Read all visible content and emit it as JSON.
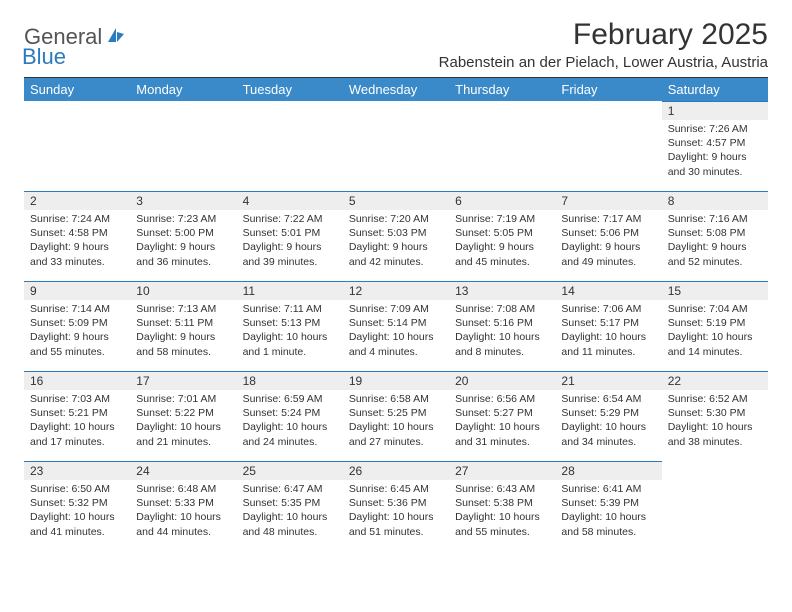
{
  "logo": {
    "part1": "General",
    "part2": "Blue"
  },
  "title": "February 2025",
  "location": "Rabenstein an der Pielach, Lower Austria, Austria",
  "colors": {
    "header_bar": "#3a89c9",
    "daynum_bg": "#eeeeee",
    "daynum_border": "#2b7bbf",
    "text": "#333333",
    "logo_gray": "#555555",
    "logo_blue": "#2b7bbf"
  },
  "weekdays": [
    "Sunday",
    "Monday",
    "Tuesday",
    "Wednesday",
    "Thursday",
    "Friday",
    "Saturday"
  ],
  "weeks": [
    [
      null,
      null,
      null,
      null,
      null,
      null,
      {
        "d": "1",
        "sunrise": "7:26 AM",
        "sunset": "4:57 PM",
        "daylight": "9 hours and 30 minutes."
      }
    ],
    [
      {
        "d": "2",
        "sunrise": "7:24 AM",
        "sunset": "4:58 PM",
        "daylight": "9 hours and 33 minutes."
      },
      {
        "d": "3",
        "sunrise": "7:23 AM",
        "sunset": "5:00 PM",
        "daylight": "9 hours and 36 minutes."
      },
      {
        "d": "4",
        "sunrise": "7:22 AM",
        "sunset": "5:01 PM",
        "daylight": "9 hours and 39 minutes."
      },
      {
        "d": "5",
        "sunrise": "7:20 AM",
        "sunset": "5:03 PM",
        "daylight": "9 hours and 42 minutes."
      },
      {
        "d": "6",
        "sunrise": "7:19 AM",
        "sunset": "5:05 PM",
        "daylight": "9 hours and 45 minutes."
      },
      {
        "d": "7",
        "sunrise": "7:17 AM",
        "sunset": "5:06 PM",
        "daylight": "9 hours and 49 minutes."
      },
      {
        "d": "8",
        "sunrise": "7:16 AM",
        "sunset": "5:08 PM",
        "daylight": "9 hours and 52 minutes."
      }
    ],
    [
      {
        "d": "9",
        "sunrise": "7:14 AM",
        "sunset": "5:09 PM",
        "daylight": "9 hours and 55 minutes."
      },
      {
        "d": "10",
        "sunrise": "7:13 AM",
        "sunset": "5:11 PM",
        "daylight": "9 hours and 58 minutes."
      },
      {
        "d": "11",
        "sunrise": "7:11 AM",
        "sunset": "5:13 PM",
        "daylight": "10 hours and 1 minute."
      },
      {
        "d": "12",
        "sunrise": "7:09 AM",
        "sunset": "5:14 PM",
        "daylight": "10 hours and 4 minutes."
      },
      {
        "d": "13",
        "sunrise": "7:08 AM",
        "sunset": "5:16 PM",
        "daylight": "10 hours and 8 minutes."
      },
      {
        "d": "14",
        "sunrise": "7:06 AM",
        "sunset": "5:17 PM",
        "daylight": "10 hours and 11 minutes."
      },
      {
        "d": "15",
        "sunrise": "7:04 AM",
        "sunset": "5:19 PM",
        "daylight": "10 hours and 14 minutes."
      }
    ],
    [
      {
        "d": "16",
        "sunrise": "7:03 AM",
        "sunset": "5:21 PM",
        "daylight": "10 hours and 17 minutes."
      },
      {
        "d": "17",
        "sunrise": "7:01 AM",
        "sunset": "5:22 PM",
        "daylight": "10 hours and 21 minutes."
      },
      {
        "d": "18",
        "sunrise": "6:59 AM",
        "sunset": "5:24 PM",
        "daylight": "10 hours and 24 minutes."
      },
      {
        "d": "19",
        "sunrise": "6:58 AM",
        "sunset": "5:25 PM",
        "daylight": "10 hours and 27 minutes."
      },
      {
        "d": "20",
        "sunrise": "6:56 AM",
        "sunset": "5:27 PM",
        "daylight": "10 hours and 31 minutes."
      },
      {
        "d": "21",
        "sunrise": "6:54 AM",
        "sunset": "5:29 PM",
        "daylight": "10 hours and 34 minutes."
      },
      {
        "d": "22",
        "sunrise": "6:52 AM",
        "sunset": "5:30 PM",
        "daylight": "10 hours and 38 minutes."
      }
    ],
    [
      {
        "d": "23",
        "sunrise": "6:50 AM",
        "sunset": "5:32 PM",
        "daylight": "10 hours and 41 minutes."
      },
      {
        "d": "24",
        "sunrise": "6:48 AM",
        "sunset": "5:33 PM",
        "daylight": "10 hours and 44 minutes."
      },
      {
        "d": "25",
        "sunrise": "6:47 AM",
        "sunset": "5:35 PM",
        "daylight": "10 hours and 48 minutes."
      },
      {
        "d": "26",
        "sunrise": "6:45 AM",
        "sunset": "5:36 PM",
        "daylight": "10 hours and 51 minutes."
      },
      {
        "d": "27",
        "sunrise": "6:43 AM",
        "sunset": "5:38 PM",
        "daylight": "10 hours and 55 minutes."
      },
      {
        "d": "28",
        "sunrise": "6:41 AM",
        "sunset": "5:39 PM",
        "daylight": "10 hours and 58 minutes."
      },
      null
    ]
  ],
  "labels": {
    "sunrise": "Sunrise:",
    "sunset": "Sunset:",
    "daylight": "Daylight:"
  }
}
